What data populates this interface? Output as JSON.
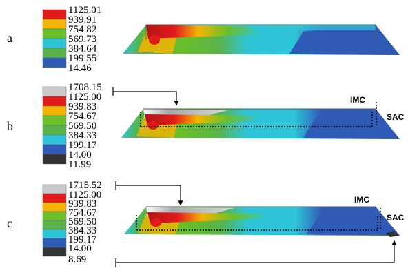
{
  "panels": [
    {
      "letter": "a",
      "legend": [
        {
          "value": "1125.01",
          "color": "#e31a1c"
        },
        {
          "value": "939.91",
          "color": "#f4b400"
        },
        {
          "value": "754.82",
          "color": "#6abf2a"
        },
        {
          "value": "569.73",
          "color": "#59b34a"
        },
        {
          "value": "384.64",
          "color": "#2ec4d8"
        },
        {
          "value": "199.55",
          "color": "#2f5bb7"
        },
        {
          "value": "14.46",
          "color": "#ffffff"
        }
      ],
      "imc_label": "",
      "sac_label": ""
    },
    {
      "letter": "b",
      "legend": [
        {
          "value": "1708.15",
          "color": "#c9c9c9"
        },
        {
          "value": "1125.00",
          "color": "#e31a1c"
        },
        {
          "value": "939.83",
          "color": "#f4b400"
        },
        {
          "value": "754.67",
          "color": "#6abf2a"
        },
        {
          "value": "569.50",
          "color": "#59b34a"
        },
        {
          "value": "384.33",
          "color": "#2ec4d8"
        },
        {
          "value": "199.17",
          "color": "#2f5bb7"
        },
        {
          "value": "14.00",
          "color": "#333333"
        },
        {
          "value": "11.99",
          "color": "#ffffff"
        }
      ],
      "imc_label": "IMC",
      "sac_label": "SAC"
    },
    {
      "letter": "c",
      "legend": [
        {
          "value": "1715.52",
          "color": "#c9c9c9"
        },
        {
          "value": "1125.00",
          "color": "#e31a1c"
        },
        {
          "value": "939.83",
          "color": "#f4b400"
        },
        {
          "value": "754.67",
          "color": "#6abf2a"
        },
        {
          "value": "569.50",
          "color": "#59b34a"
        },
        {
          "value": "384.33",
          "color": "#2ec4d8"
        },
        {
          "value": "199.17",
          "color": "#2f5bb7"
        },
        {
          "value": "14.00",
          "color": "#333333"
        },
        {
          "value": "8.69",
          "color": "#ffffff"
        }
      ],
      "imc_label": "IMC",
      "sac_label": "SAC"
    }
  ]
}
